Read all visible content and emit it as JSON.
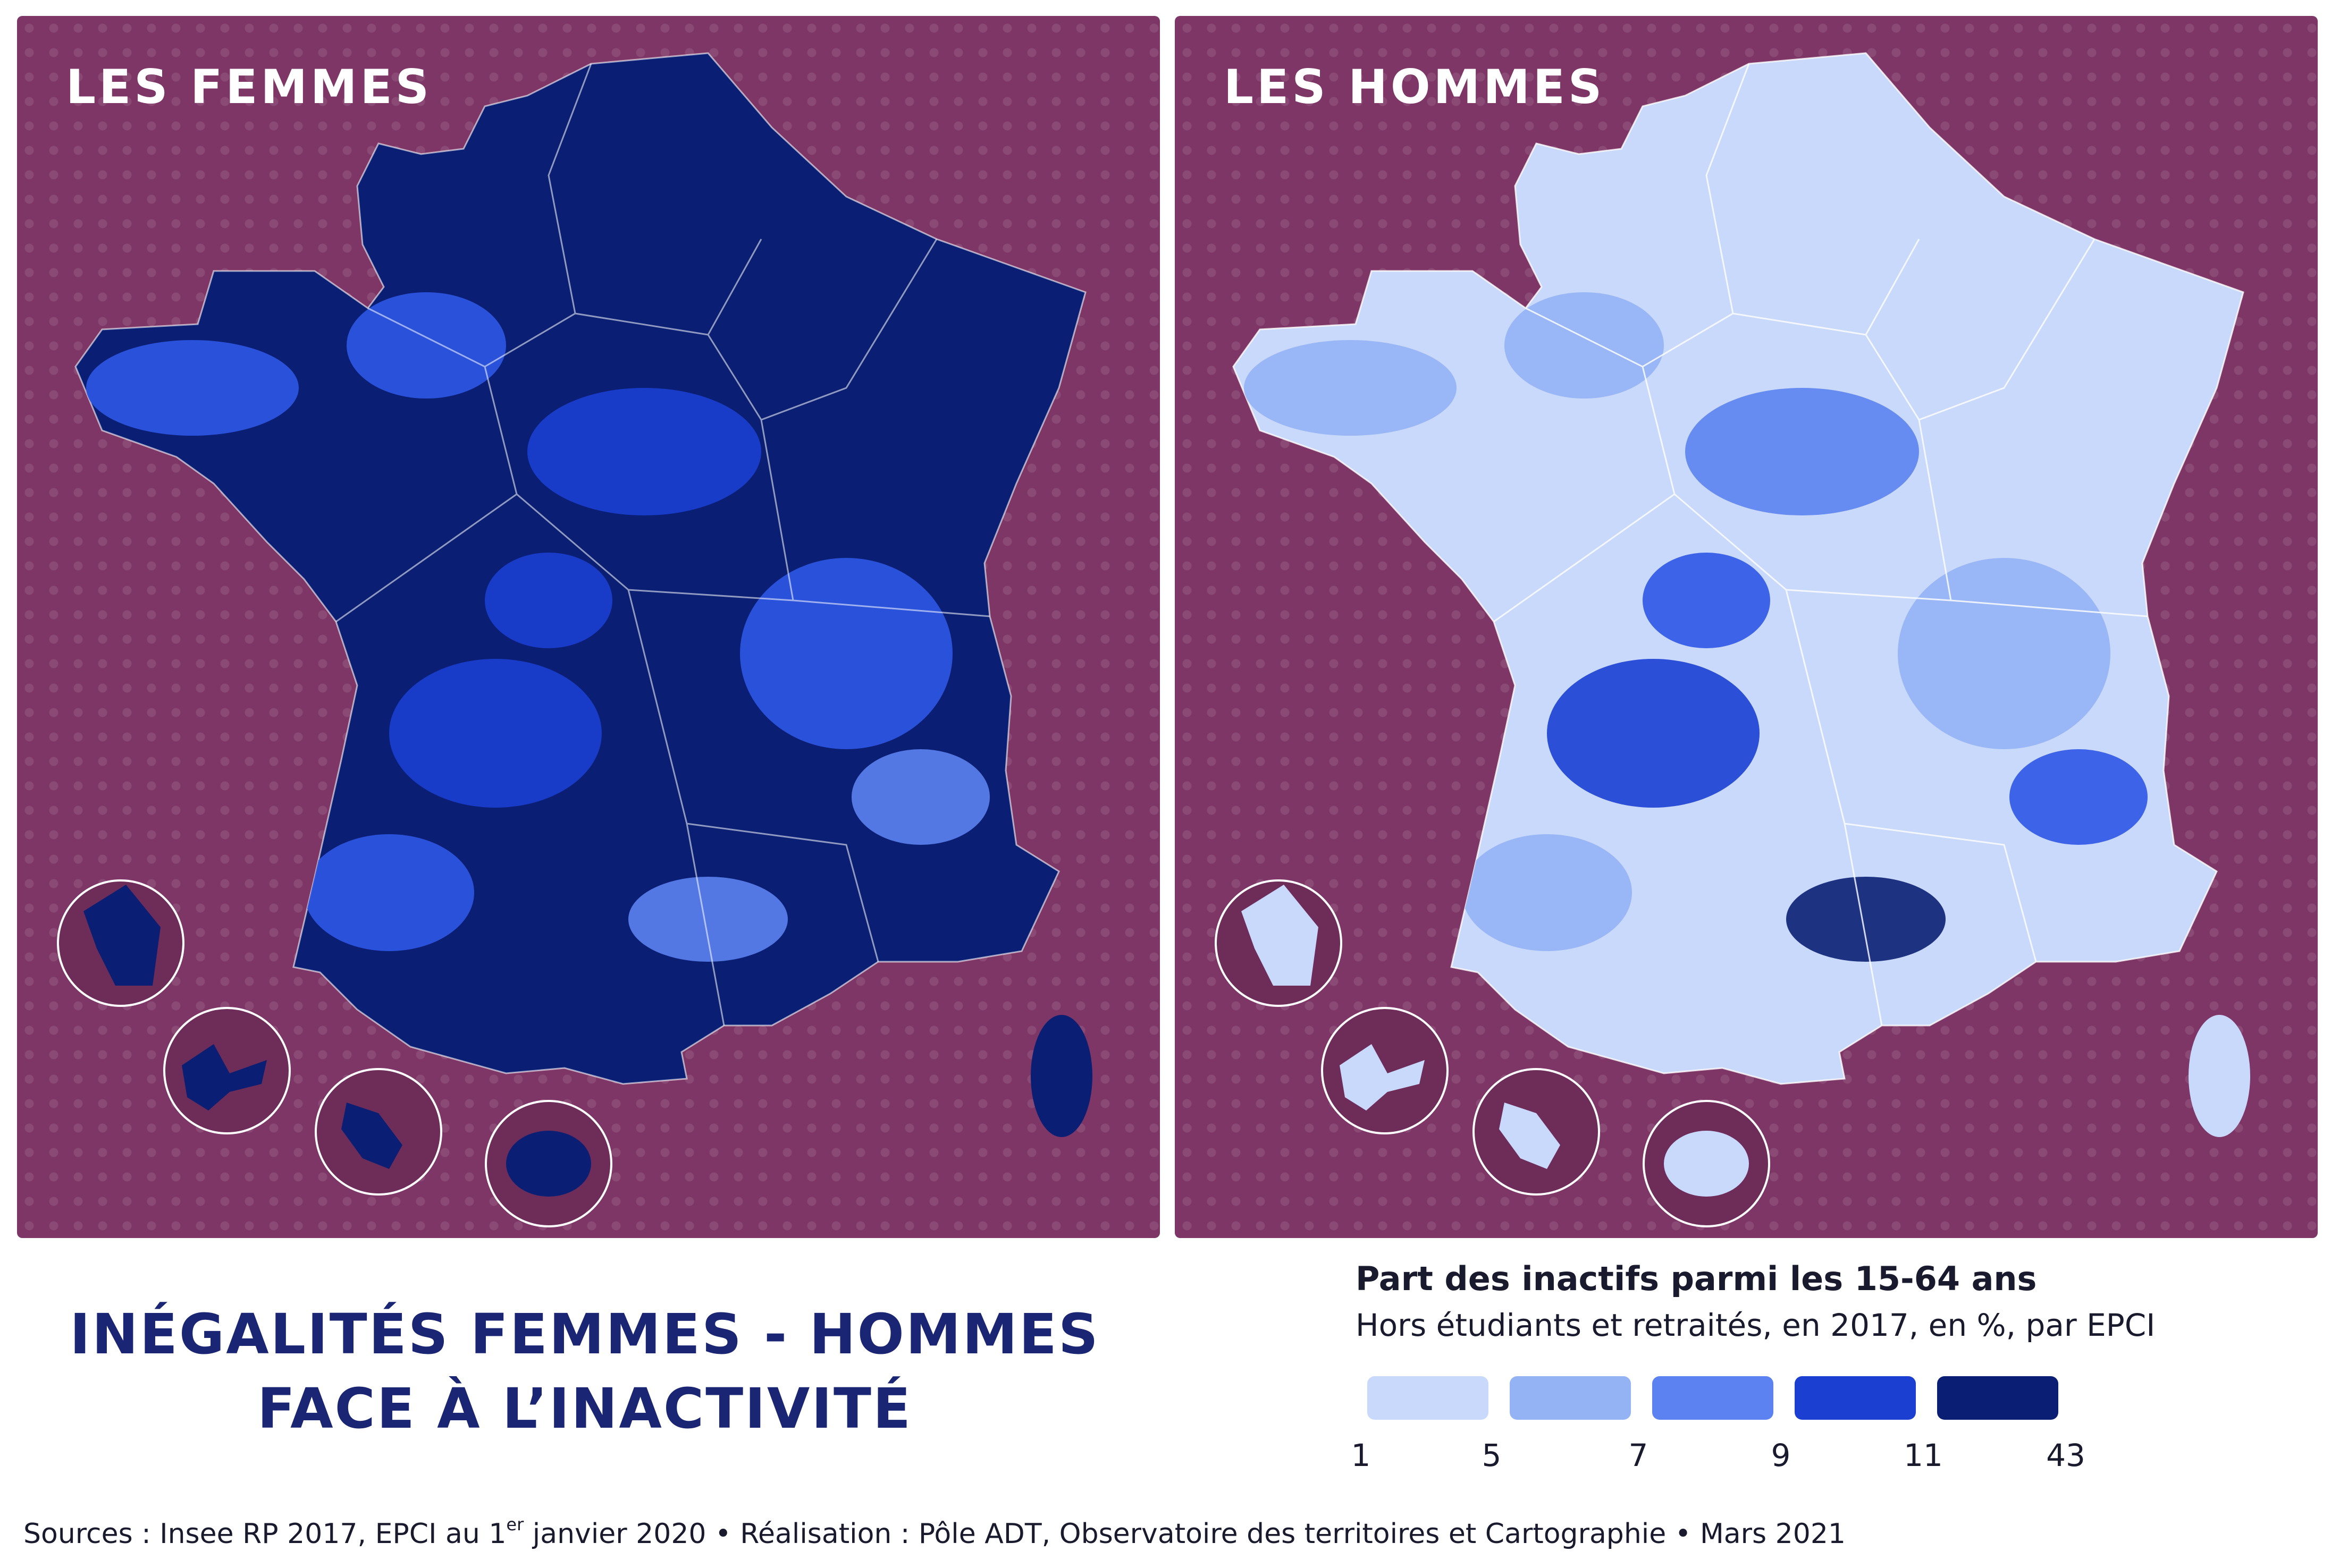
{
  "maps": {
    "women": {
      "title": "LES FEMMES",
      "base_color": "#0a1f73",
      "patches": [
        {
          "color": "#2e56e6"
        },
        {
          "color": "#2e56e6"
        },
        {
          "color": "#1a3fd1"
        },
        {
          "color": "#2e56e6"
        },
        {
          "color": "#5b82f0"
        },
        {
          "color": "#1a3fd1"
        },
        {
          "color": "#2e56e6"
        },
        {
          "color": "#5b82f0"
        },
        {
          "color": "#1a3fd1"
        }
      ]
    },
    "men": {
      "title": "LES HOMMES",
      "base_color": "#c9d9fb",
      "patches": [
        {
          "color": "#94b3f5"
        },
        {
          "color": "#94b3f5"
        },
        {
          "color": "#5b82f0"
        },
        {
          "color": "#94b3f5"
        },
        {
          "color": "#2e56e6"
        },
        {
          "color": "#1a3fd1"
        },
        {
          "color": "#94b3f5"
        },
        {
          "color": "#0a1f73"
        },
        {
          "color": "#2e56e6"
        }
      ]
    }
  },
  "title": {
    "line1": "INÉGALITÉS FEMMES - HOMMES",
    "line2": "FACE À L’INACTIVITÉ"
  },
  "legend": {
    "heading": "Part des inactifs parmi les 15-64 ans",
    "subheading": "Hors étudiants et retraités, en 2017, en %, par EPCI",
    "classes": [
      {
        "color": "#c9d9fb"
      },
      {
        "color": "#94b3f5"
      },
      {
        "color": "#5b82f0"
      },
      {
        "color": "#1a3fd1"
      },
      {
        "color": "#0a1f73"
      }
    ],
    "breaks": [
      "1",
      "5",
      "7",
      "9",
      "11",
      "43"
    ]
  },
  "sources": {
    "part1": "Sources : Insee RP 2017, EPCI au 1",
    "sup": "er",
    "part2": " janvier 2020 • Réalisation : Pôle ADT, Observatoire des territoires et Cartographie • Mars 2021"
  }
}
